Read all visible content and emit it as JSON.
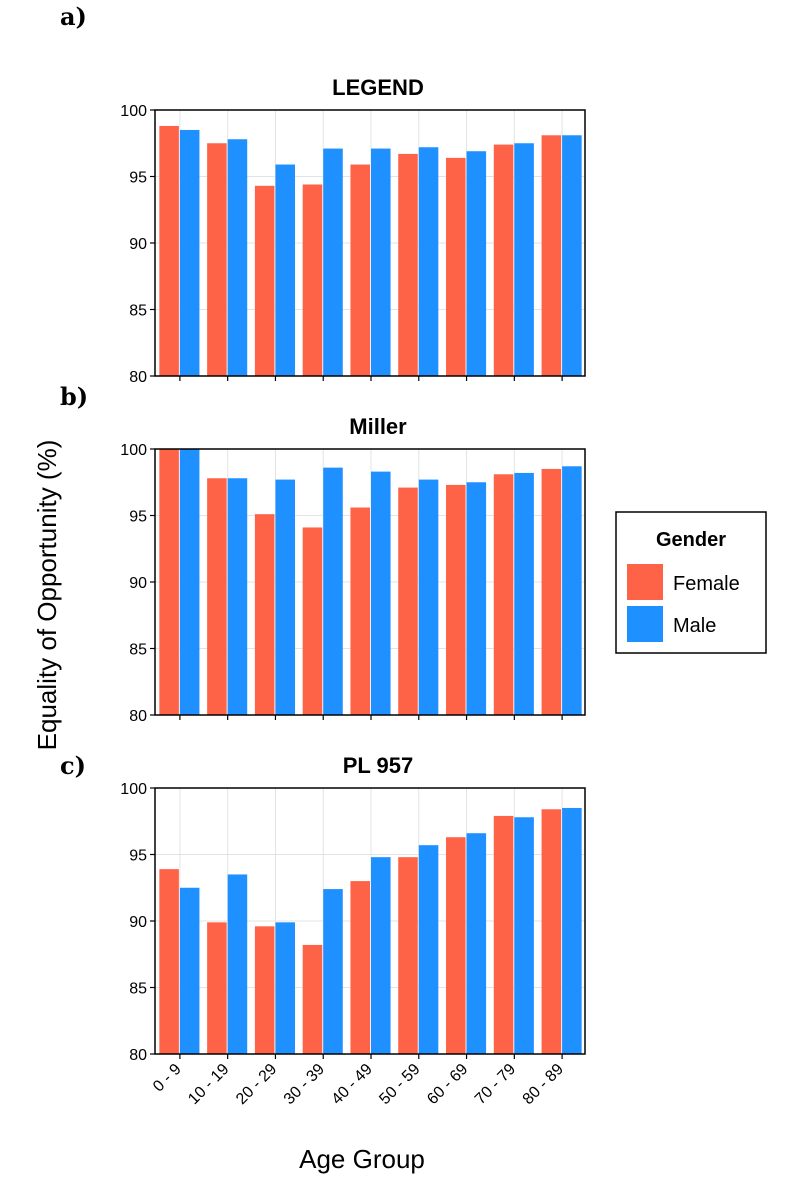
{
  "colors": {
    "female": "#ff6347",
    "male": "#1e90ff"
  },
  "ylabel": "Equality of Opportunity (%)",
  "xlabel": "Age Group",
  "legend": {
    "title": "Gender",
    "items": [
      "Female",
      "Male"
    ]
  },
  "chart_data": [
    {
      "type": "bar",
      "panel": "a)",
      "title": "LEGEND",
      "categories": [
        "0 - 9",
        "10 - 19",
        "20 - 29",
        "30 - 39",
        "40 - 49",
        "50 - 59",
        "60 - 69",
        "70 - 79",
        "80 - 89"
      ],
      "series": [
        {
          "name": "Female",
          "values": [
            98.8,
            97.5,
            94.3,
            94.4,
            95.9,
            96.7,
            96.4,
            97.4,
            98.1
          ]
        },
        {
          "name": "Male",
          "values": [
            98.5,
            97.8,
            95.9,
            97.1,
            97.1,
            97.2,
            96.9,
            97.5,
            98.1
          ]
        }
      ],
      "ylim": [
        80,
        100
      ],
      "yticks": [
        80,
        85,
        90,
        95,
        100
      ]
    },
    {
      "type": "bar",
      "panel": "b)",
      "title": "Miller",
      "categories": [
        "0 - 9",
        "10 - 19",
        "20 - 29",
        "30 - 39",
        "40 - 49",
        "50 - 59",
        "60 - 69",
        "70 - 79",
        "80 - 89"
      ],
      "series": [
        {
          "name": "Female",
          "values": [
            100.0,
            97.8,
            95.1,
            94.1,
            95.6,
            97.1,
            97.3,
            98.1,
            98.5
          ]
        },
        {
          "name": "Male",
          "values": [
            100.0,
            97.8,
            97.7,
            98.6,
            98.3,
            97.7,
            97.5,
            98.2,
            98.7
          ]
        }
      ],
      "ylim": [
        80,
        100
      ],
      "yticks": [
        80,
        85,
        90,
        95,
        100
      ]
    },
    {
      "type": "bar",
      "panel": "c)",
      "title": "PL 957",
      "categories": [
        "0 - 9",
        "10 - 19",
        "20 - 29",
        "30 - 39",
        "40 - 49",
        "50 - 59",
        "60 - 69",
        "70 - 79",
        "80 - 89"
      ],
      "series": [
        {
          "name": "Female",
          "values": [
            93.9,
            89.9,
            89.6,
            88.2,
            93.0,
            94.8,
            96.3,
            97.9,
            98.4
          ]
        },
        {
          "name": "Male",
          "values": [
            92.5,
            93.5,
            89.9,
            92.4,
            94.8,
            95.7,
            96.6,
            97.8,
            98.5
          ]
        }
      ],
      "ylim": [
        80,
        100
      ],
      "yticks": [
        80,
        85,
        90,
        95,
        100
      ]
    }
  ]
}
